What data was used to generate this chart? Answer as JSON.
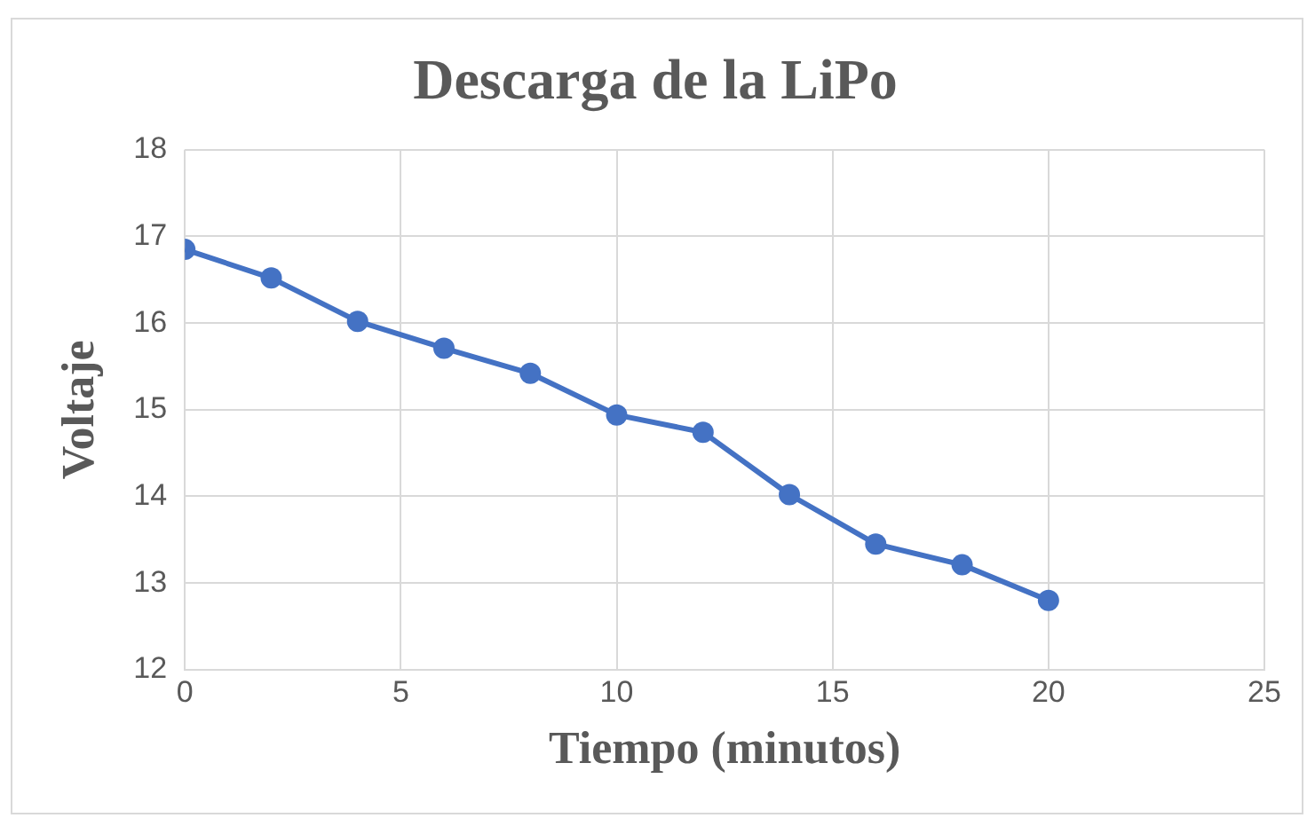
{
  "chart_data": {
    "type": "line",
    "title": "Descarga de la LiPo",
    "xlabel": "Tiempo (minutos)",
    "ylabel": "Voltaje",
    "x": [
      0,
      2,
      4,
      6,
      8,
      10,
      12,
      14,
      16,
      18,
      20
    ],
    "series": [
      {
        "color": "#4472c4",
        "values": [
          16.85,
          16.52,
          16.02,
          15.71,
          15.42,
          14.94,
          14.74,
          14.02,
          13.45,
          13.21,
          12.8
        ]
      }
    ],
    "xlim": [
      0,
      25
    ],
    "xticks": [
      0,
      5,
      10,
      15,
      20,
      25
    ],
    "ylim": [
      12,
      18
    ],
    "yticks": [
      12,
      13,
      14,
      15,
      16,
      17,
      18
    ],
    "grid": true,
    "legend": false,
    "marker": "circle",
    "line_style": "solid"
  }
}
